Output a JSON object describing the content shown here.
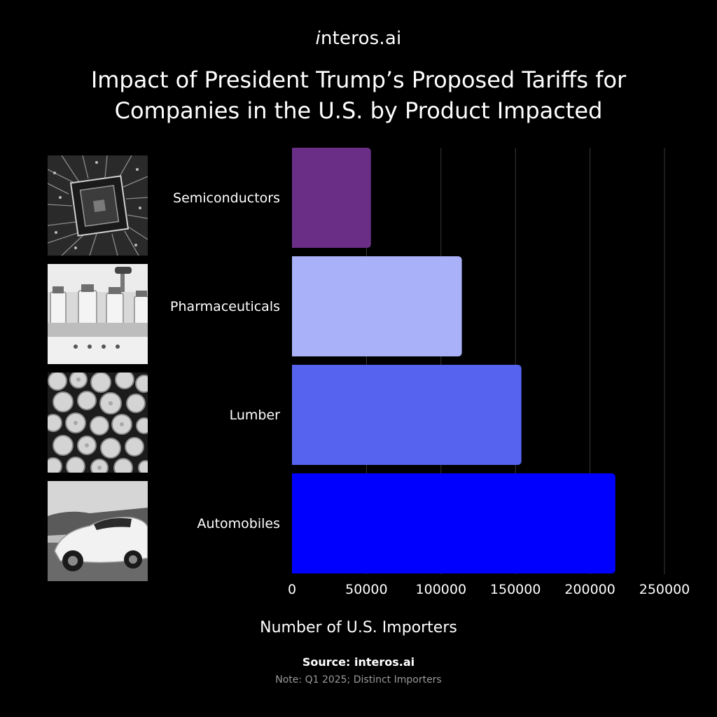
{
  "brand": {
    "prefix": "i",
    "rest": "nteros.ai"
  },
  "title_line1": "Impact of President Trump’s Proposed Tariffs for",
  "title_line2": "Companies in the U.S. by Product Impacted",
  "images": [
    "microchip-photo",
    "vials-photo",
    "logs-photo",
    "car-photo"
  ],
  "chart_data": {
    "type": "bar",
    "orientation": "horizontal",
    "categories": [
      "Semiconductors",
      "Pharmaceuticals",
      "Lumber",
      "Automobiles"
    ],
    "values": [
      53000,
      114000,
      154000,
      217000
    ],
    "colors": [
      "#6b2e86",
      "#a9b1f8",
      "#5563ef",
      "#0000ff"
    ],
    "xlabel": "Number of U.S. Importers",
    "xlim": [
      0,
      250000
    ],
    "xticks": [
      "0",
      "50000",
      "100000",
      "150000",
      "200000",
      "250000"
    ],
    "grid": true
  },
  "source": "Source: interos.ai",
  "note": "Note: Q1 2025; Distinct Importers"
}
